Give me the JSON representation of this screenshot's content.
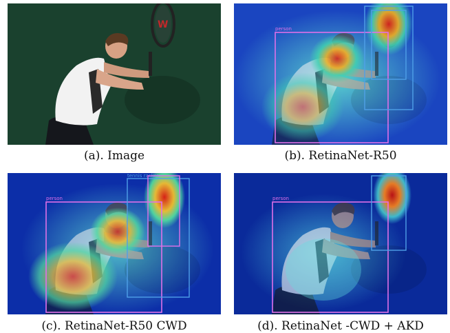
{
  "figure": {
    "panels": [
      {
        "caption": "(a). Image"
      },
      {
        "caption": "(b). RetinaNet-R50",
        "label_person": "person"
      },
      {
        "caption": "(c). RetinaNet-R50 CWD",
        "label_person": "person",
        "label_racket": "tennis racket"
      },
      {
        "caption": "(d). RetinaNet -CWD + AKD",
        "label_person": "person"
      }
    ],
    "colors": {
      "person_box": "#e070e8",
      "racket_box": "#4fa0e8",
      "court_green": "#1f4a36",
      "heat_cold": "#0a2a9a",
      "heat_hot": "#e02010"
    }
  }
}
